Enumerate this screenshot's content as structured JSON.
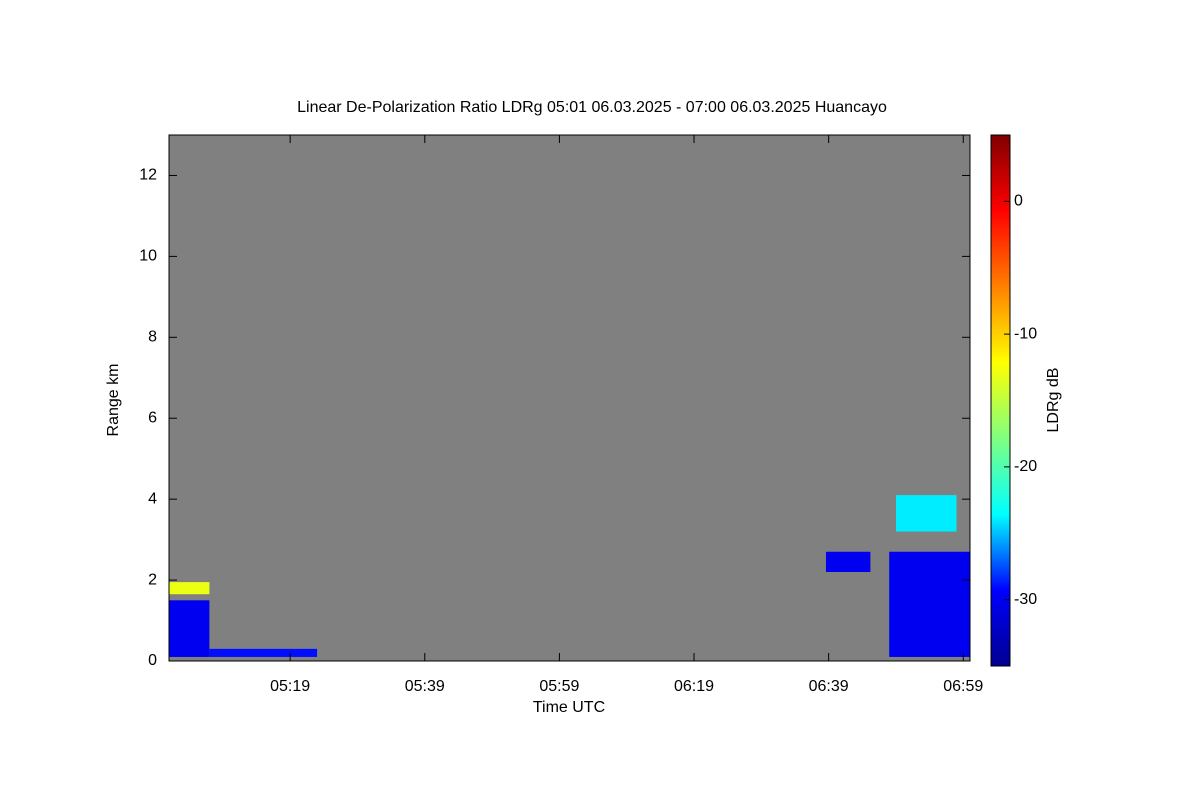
{
  "chart_data": {
    "type": "heatmap",
    "title": "Linear De-Polarization Ratio LDRg   05:01 06.03.2025 - 07:00 06.03.2025 Huancayo",
    "x_label": "Time UTC",
    "y_label": "Range km",
    "colorbar_label": "LDRg dB",
    "background": "#808080",
    "xlim": [
      301,
      420
    ],
    "xticks": [
      {
        "value": 319,
        "label": "05:19"
      },
      {
        "value": 339,
        "label": "05:39"
      },
      {
        "value": 359,
        "label": "05:59"
      },
      {
        "value": 379,
        "label": "06:19"
      },
      {
        "value": 399,
        "label": "06:39"
      },
      {
        "value": 419,
        "label": "06:59"
      }
    ],
    "ylim": [
      0,
      13
    ],
    "yticks": [
      0,
      2,
      4,
      6,
      8,
      10,
      12
    ],
    "clim": [
      -35,
      5
    ],
    "cticks": [
      0,
      -10,
      -20,
      -30
    ],
    "colormap": [
      "#00008f",
      "#0000ff",
      "#00ffff",
      "#80ff80",
      "#ffff00",
      "#ff8000",
      "#ff0000",
      "#800000"
    ],
    "regions": [
      {
        "x": [
          301,
          307
        ],
        "y": [
          0.1,
          1.5
        ],
        "value": -30
      },
      {
        "x": [
          301,
          307
        ],
        "y": [
          1.65,
          1.95
        ],
        "value": -13
      },
      {
        "x": [
          307,
          323
        ],
        "y": [
          0.1,
          0.3
        ],
        "value": -29
      },
      {
        "x": [
          408,
          420
        ],
        "y": [
          0.1,
          2.7
        ],
        "value": -30
      },
      {
        "x": [
          398.6,
          405.2
        ],
        "y": [
          2.2,
          2.7
        ],
        "value": -30
      },
      {
        "x": [
          409,
          418
        ],
        "y": [
          3.2,
          4.1
        ],
        "value": -24
      }
    ]
  }
}
